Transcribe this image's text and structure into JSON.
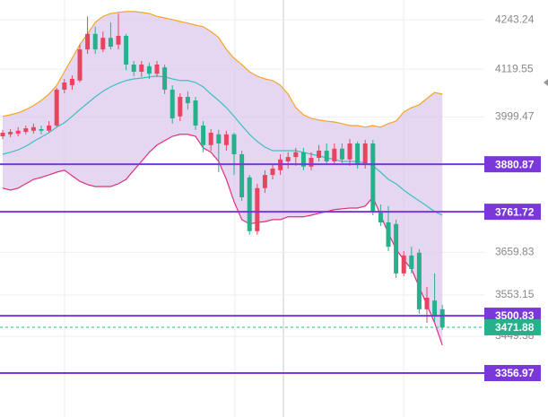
{
  "chart_data": {
    "type": "candlestick",
    "ylim": [
      3246.75,
      4293
    ],
    "yticks": [
      4243.24,
      4119.55,
      3999.47,
      3659.83,
      3553.15,
      3449.38
    ],
    "grid": true,
    "up_color": "#e8445f",
    "down_color": "#27b08c",
    "open": [
      3951,
      3956,
      3958,
      3962,
      3965,
      3969,
      3965,
      3978,
      4068,
      4079,
      4091,
      4169,
      4208,
      4169,
      4198,
      4181,
      4203,
      4131,
      4113,
      4127,
      4108,
      4124,
      4068,
      4001,
      4050,
      4041,
      3978,
      3929,
      3956,
      3929,
      3956,
      3906,
      3848,
      3713,
      3821,
      3854,
      3866,
      3888,
      3899,
      3911,
      3875,
      3897,
      3915,
      3888,
      3920,
      3893,
      3933,
      3881,
      3933,
      3762,
      3735,
      3731,
      3607,
      3652,
      3659,
      3517,
      3539,
      3517
    ],
    "close": [
      3960,
      3962,
      3965,
      3971,
      3974,
      3965,
      3978,
      4068,
      4086,
      4095,
      4169,
      4208,
      4169,
      4198,
      4176,
      4203,
      4131,
      4113,
      4131,
      4108,
      4131,
      4068,
      3996,
      4050,
      4034,
      3978,
      3929,
      3960,
      3933,
      3956,
      3906,
      3798,
      3713,
      3821,
      3854,
      3870,
      3893,
      3899,
      3911,
      3875,
      3897,
      3915,
      3888,
      3920,
      3893,
      3933,
      3881,
      3933,
      3762,
      3735,
      3674,
      3607,
      3652,
      3618,
      3517,
      3546,
      3501,
      3472
    ],
    "high": [
      3967,
      3969,
      3974,
      3978,
      3983,
      3978,
      3989,
      4073,
      4095,
      4104,
      4181,
      4252,
      4226,
      4214,
      4237,
      4259,
      4208,
      4140,
      4140,
      4136,
      4140,
      4131,
      4079,
      4059,
      4064,
      4050,
      3989,
      3969,
      3967,
      3965,
      3960,
      3915,
      3854,
      3832,
      3866,
      3879,
      3906,
      3911,
      3922,
      3922,
      3911,
      3929,
      3933,
      3933,
      3933,
      3944,
      3938,
      3942,
      3942,
      3780,
      3776,
      3742,
      3663,
      3674,
      3668,
      3573,
      3607,
      3528
    ],
    "low": [
      3944,
      3949,
      3951,
      3956,
      3958,
      3956,
      3960,
      3974,
      4059,
      4068,
      4086,
      4158,
      4158,
      4162,
      4169,
      4169,
      4117,
      4102,
      4100,
      4095,
      4100,
      4057,
      3983,
      3989,
      4018,
      3967,
      3911,
      3915,
      3861,
      3915,
      3854,
      3789,
      3704,
      3704,
      3809,
      3843,
      3854,
      3870,
      3877,
      3866,
      3866,
      3888,
      3879,
      3879,
      3884,
      3877,
      3870,
      3870,
      3753,
      3726,
      3663,
      3596,
      3600,
      3607,
      3506,
      3483,
      3483,
      3465
    ],
    "band_fill": "#dccaee",
    "series": [
      {
        "name": "upper",
        "color": "#f5a623",
        "values": [
          4001,
          4005,
          4010,
          4018,
          4028,
          4041,
          4057,
          4079,
          4113,
          4147,
          4181,
          4208,
          4237,
          4252,
          4259,
          4262,
          4264,
          4264,
          4262,
          4259,
          4252,
          4248,
          4244,
          4239,
          4235,
          4230,
          4226,
          4214,
          4199,
          4169,
          4147,
          4131,
          4113,
          4102,
          4095,
          4091,
          4079,
          4057,
          4023,
          4005,
          3996,
          3992,
          3989,
          3987,
          3983,
          3978,
          3978,
          3974,
          3978,
          3974,
          3983,
          3989,
          4012,
          4023,
          4030,
          4046,
          4061,
          4057
        ]
      },
      {
        "name": "middle",
        "color": "#3fbfbf",
        "values": [
          3906,
          3911,
          3917,
          3926,
          3938,
          3949,
          3960,
          3974,
          3985,
          4001,
          4018,
          4034,
          4050,
          4064,
          4075,
          4084,
          4091,
          4095,
          4097,
          4100,
          4102,
          4100,
          4095,
          4091,
          4091,
          4086,
          4075,
          4057,
          4041,
          4023,
          4001,
          3978,
          3956,
          3938,
          3924,
          3915,
          3915,
          3915,
          3915,
          3911,
          3906,
          3902,
          3897,
          3893,
          3888,
          3888,
          3888,
          3884,
          3877,
          3861,
          3843,
          3832,
          3816,
          3802,
          3789,
          3776,
          3762,
          3753
        ]
      },
      {
        "name": "lower",
        "color": "#e0307a",
        "values": [
          3821,
          3816,
          3821,
          3832,
          3843,
          3848,
          3854,
          3861,
          3866,
          3852,
          3838,
          3830,
          3825,
          3825,
          3825,
          3832,
          3843,
          3866,
          3888,
          3911,
          3929,
          3940,
          3951,
          3956,
          3956,
          3951,
          3922,
          3911,
          3888,
          3843,
          3787,
          3742,
          3731,
          3735,
          3737,
          3742,
          3742,
          3749,
          3749,
          3749,
          3753,
          3758,
          3762,
          3767,
          3769,
          3771,
          3771,
          3776,
          3798,
          3753,
          3708,
          3668,
          3641,
          3618,
          3573,
          3528,
          3483,
          3427
        ]
      }
    ],
    "price_lines": [
      3880.87,
      3761.72,
      3500.83,
      3356.97
    ],
    "price_line_color": "#7a38d8",
    "last_price": 3471.88,
    "last_price_color": "#27b08c"
  }
}
